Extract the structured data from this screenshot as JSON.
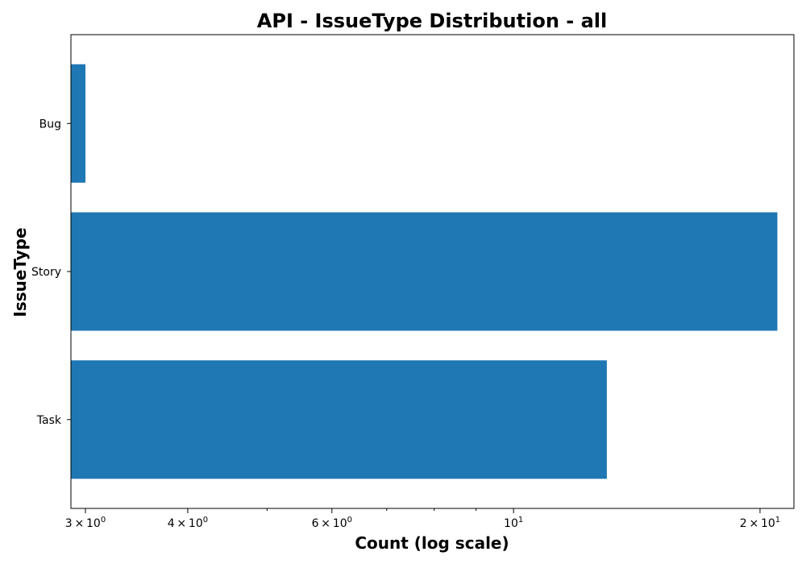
{
  "chart_data": {
    "type": "bar",
    "orientation": "horizontal",
    "title": "API - IssueType Distribution - all",
    "xlabel": "Count (log scale)",
    "ylabel": "IssueType",
    "x_scale": "log",
    "xlim": [
      2.88,
      22.0
    ],
    "categories": [
      "Bug",
      "Story",
      "Task"
    ],
    "values": [
      3,
      21,
      13
    ],
    "bar_color": "#1f77b4",
    "x_ticks": [
      {
        "value": 3,
        "base": "3",
        "op": "×",
        "pow_base": "10",
        "exp": "0"
      },
      {
        "value": 4,
        "base": "4",
        "op": "×",
        "pow_base": "10",
        "exp": "0"
      },
      {
        "value": 6,
        "base": "6",
        "op": "×",
        "pow_base": "10",
        "exp": "0"
      },
      {
        "value": 10,
        "base": "",
        "op": "",
        "pow_base": "10",
        "exp": "1"
      },
      {
        "value": 20,
        "base": "2",
        "op": "×",
        "pow_base": "10",
        "exp": "1"
      }
    ],
    "minor_x_ticks": [
      5,
      7,
      8,
      9
    ],
    "grid": false,
    "legend": "none"
  }
}
